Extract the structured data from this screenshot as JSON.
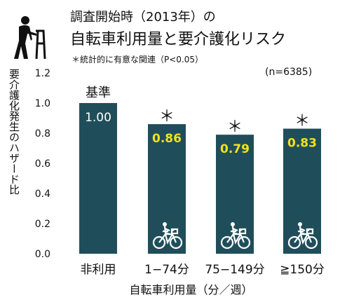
{
  "header": {
    "title_line1": "調査開始時（2013年）の",
    "title_line2": "自転車利用量と要介護化リスク",
    "significance_note": "＊統計的に有意な関連（P<0.05）",
    "sample_size": "(n=6385)"
  },
  "icons": {
    "header": "elderly-person-with-walker-icon",
    "bar": "cyclist-icon"
  },
  "colors": {
    "bar": "#1f4e5a",
    "significant_label": "#f2e21a",
    "reference_label": "#ffffff"
  },
  "chart_data": {
    "type": "bar",
    "categories": [
      "非利用",
      "1−74分",
      "75−149分",
      "≧150分"
    ],
    "values": [
      1.0,
      0.86,
      0.79,
      0.83
    ],
    "value_labels": [
      "1.00",
      "0.86",
      "0.79",
      "0.83"
    ],
    "significant": [
      false,
      true,
      true,
      true
    ],
    "significance_marker": "＊",
    "reference_label": "基準",
    "xlabel": "自転車利用量（分／週）",
    "ylabel": "要介護化発生のハザード比",
    "ylim": [
      0,
      1.2
    ],
    "yticks": [
      "0.0",
      "0.2",
      "0.4",
      "0.6",
      "0.8",
      "1.0",
      "1.2"
    ],
    "grid": false
  }
}
